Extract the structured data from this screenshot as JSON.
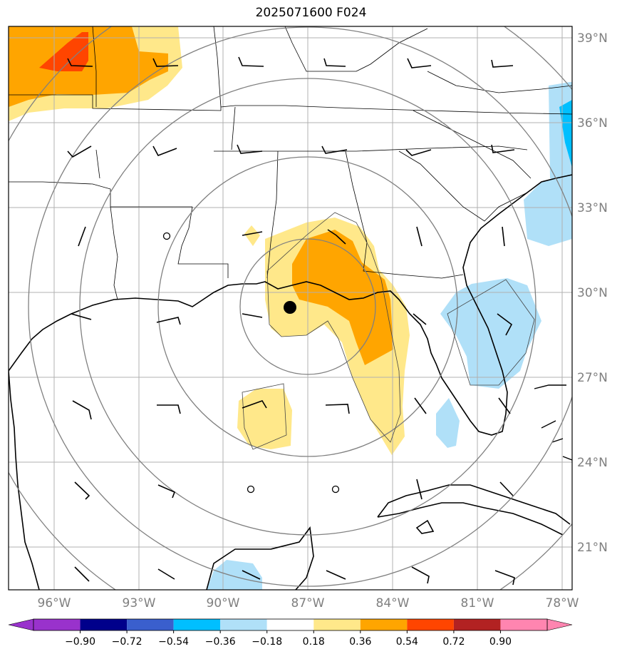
{
  "title": "2025071600 F024",
  "storm_marker": {
    "lon": -87.7,
    "lat": 29.4
  },
  "lat_labels": [
    "39°N",
    "36°N",
    "33°N",
    "30°N",
    "27°N",
    "24°N",
    "21°N"
  ],
  "lon_labels": [
    "96°W",
    "93°W",
    "90°W",
    "87°W",
    "84°W",
    "81°W",
    "78°W"
  ],
  "colorbar": {
    "ticks": [
      "−0.90",
      "−0.72",
      "−0.54",
      "−0.36",
      "−0.18",
      "0.18",
      "0.36",
      "0.54",
      "0.72",
      "0.90"
    ],
    "colors": {
      "under": "#9932cc",
      "bins": [
        "#00008b",
        "#3a5fcd",
        "#00bfff",
        "#b0e0f8",
        "#ffffff",
        "#ffe88a",
        "#ffa500",
        "#ff4500",
        "#b22222"
      ],
      "over": "#ff85b0"
    }
  },
  "colors": {
    "range_rings": "#808080",
    "gridlines": "#b0b0b0",
    "coastline": "#000000"
  }
}
